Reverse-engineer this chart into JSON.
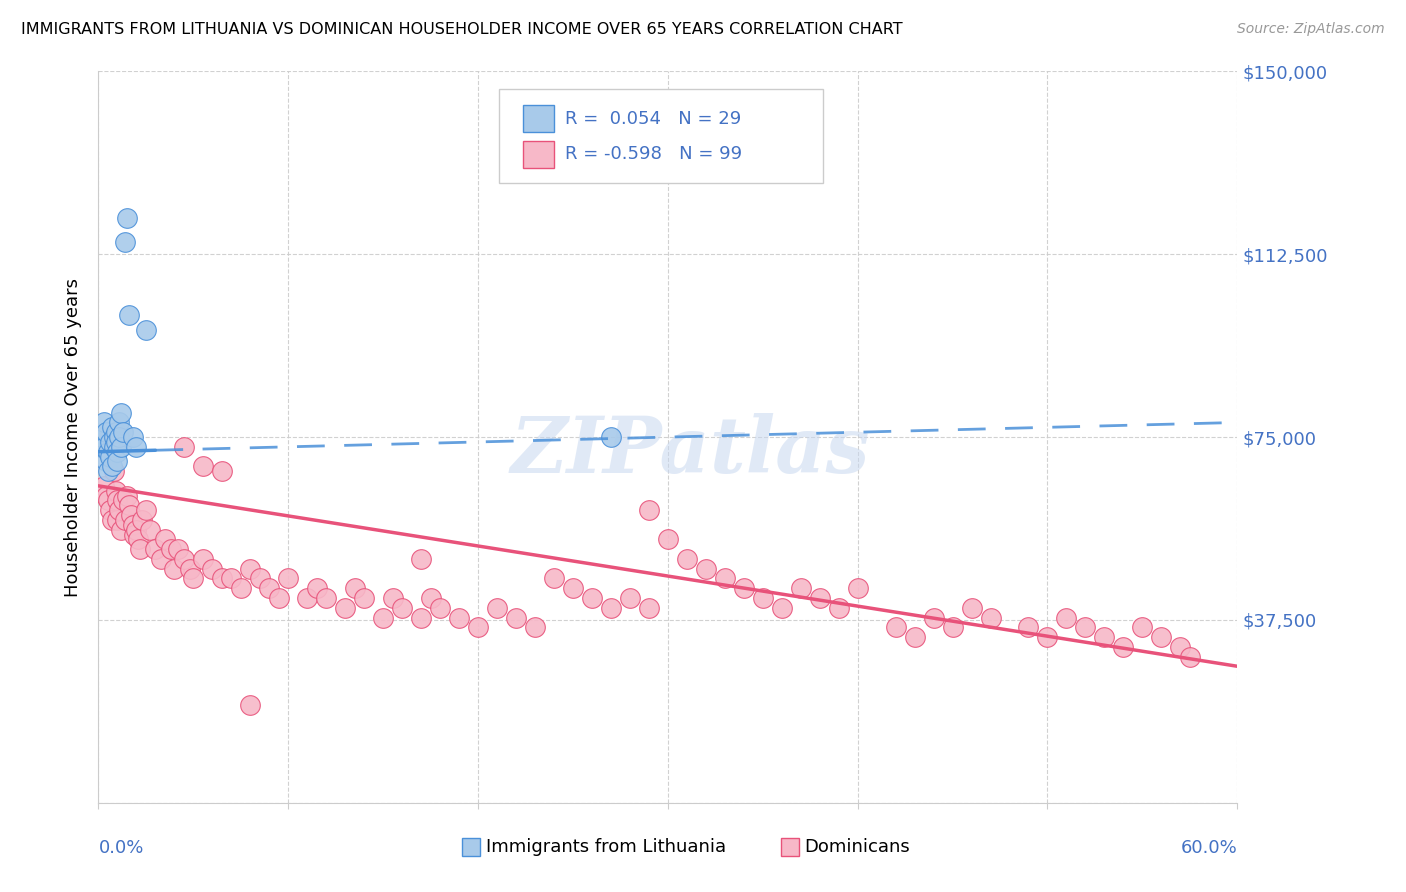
{
  "title": "IMMIGRANTS FROM LITHUANIA VS DOMINICAN HOUSEHOLDER INCOME OVER 65 YEARS CORRELATION CHART",
  "source": "Source: ZipAtlas.com",
  "ylabel": "Householder Income Over 65 years",
  "xlim": [
    0.0,
    0.6
  ],
  "ylim": [
    0,
    150000
  ],
  "yticks": [
    0,
    37500,
    75000,
    112500,
    150000
  ],
  "ytick_labels": [
    "",
    "$37,500",
    "$75,000",
    "$112,500",
    "$150,000"
  ],
  "xticks": [
    0.0,
    0.1,
    0.2,
    0.3,
    0.4,
    0.5,
    0.6
  ],
  "color_lithuania": "#A8CAEA",
  "color_dominican": "#F7B8C8",
  "color_line_lithuania": "#4A90D9",
  "color_line_dominican": "#E8527A",
  "color_axis_labels": "#4472C4",
  "watermark": "ZIPatlas",
  "lithuania_x": [
    0.002,
    0.003,
    0.003,
    0.004,
    0.004,
    0.005,
    0.005,
    0.006,
    0.006,
    0.007,
    0.007,
    0.008,
    0.008,
    0.009,
    0.009,
    0.01,
    0.01,
    0.011,
    0.011,
    0.012,
    0.012,
    0.013,
    0.014,
    0.015,
    0.016,
    0.018,
    0.02,
    0.27,
    0.025
  ],
  "lithuania_y": [
    75000,
    73000,
    78000,
    70000,
    76000,
    72000,
    68000,
    74000,
    71000,
    69000,
    77000,
    75000,
    73000,
    76000,
    74000,
    72000,
    70000,
    78000,
    75000,
    73000,
    80000,
    76000,
    115000,
    120000,
    100000,
    75000,
    73000,
    75000,
    97000
  ],
  "dominican_x": [
    0.003,
    0.004,
    0.005,
    0.006,
    0.007,
    0.008,
    0.009,
    0.01,
    0.01,
    0.011,
    0.012,
    0.013,
    0.014,
    0.015,
    0.016,
    0.017,
    0.018,
    0.019,
    0.02,
    0.021,
    0.022,
    0.023,
    0.025,
    0.027,
    0.03,
    0.033,
    0.035,
    0.038,
    0.04,
    0.042,
    0.045,
    0.048,
    0.05,
    0.055,
    0.06,
    0.065,
    0.07,
    0.075,
    0.08,
    0.085,
    0.09,
    0.095,
    0.1,
    0.11,
    0.115,
    0.12,
    0.13,
    0.135,
    0.14,
    0.15,
    0.155,
    0.16,
    0.17,
    0.175,
    0.18,
    0.19,
    0.2,
    0.21,
    0.22,
    0.23,
    0.24,
    0.25,
    0.26,
    0.27,
    0.28,
    0.29,
    0.3,
    0.31,
    0.32,
    0.33,
    0.34,
    0.35,
    0.36,
    0.37,
    0.38,
    0.39,
    0.4,
    0.42,
    0.43,
    0.44,
    0.45,
    0.46,
    0.47,
    0.49,
    0.5,
    0.51,
    0.52,
    0.53,
    0.54,
    0.55,
    0.56,
    0.57,
    0.575,
    0.045,
    0.055,
    0.065,
    0.08,
    0.17,
    0.29
  ],
  "dominican_y": [
    65000,
    63000,
    62000,
    60000,
    58000,
    68000,
    64000,
    62000,
    58000,
    60000,
    56000,
    62000,
    58000,
    63000,
    61000,
    59000,
    57000,
    55000,
    56000,
    54000,
    52000,
    58000,
    60000,
    56000,
    52000,
    50000,
    54000,
    52000,
    48000,
    52000,
    50000,
    48000,
    46000,
    50000,
    48000,
    46000,
    46000,
    44000,
    48000,
    46000,
    44000,
    42000,
    46000,
    42000,
    44000,
    42000,
    40000,
    44000,
    42000,
    38000,
    42000,
    40000,
    38000,
    42000,
    40000,
    38000,
    36000,
    40000,
    38000,
    36000,
    46000,
    44000,
    42000,
    40000,
    42000,
    40000,
    54000,
    50000,
    48000,
    46000,
    44000,
    42000,
    40000,
    44000,
    42000,
    40000,
    44000,
    36000,
    34000,
    38000,
    36000,
    40000,
    38000,
    36000,
    34000,
    38000,
    36000,
    34000,
    32000,
    36000,
    34000,
    32000,
    30000,
    73000,
    69000,
    68000,
    20000,
    50000,
    60000
  ],
  "lith_trend_x": [
    0.0,
    0.6
  ],
  "lith_trend_y": [
    72000,
    78000
  ],
  "dom_trend_x": [
    0.0,
    0.6
  ],
  "dom_trend_y": [
    65000,
    28000
  ]
}
